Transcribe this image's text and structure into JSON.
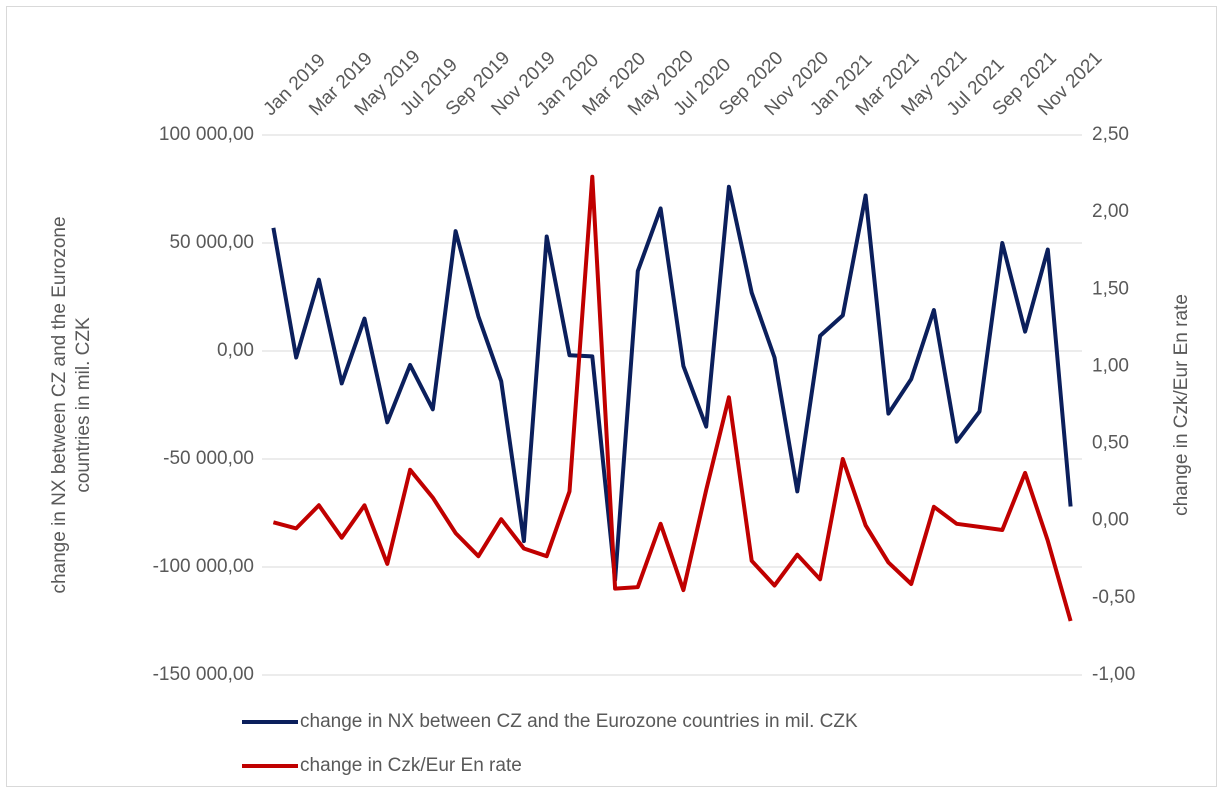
{
  "chart_data": {
    "type": "line",
    "y_label": "change in NX between CZ and the Eurozone countries in mil. CZK",
    "y2_label": "change in Czk/Eur En rate",
    "categories": [
      "Jan 2019",
      null,
      "Mar 2019",
      null,
      "May 2019",
      null,
      "Jul 2019",
      null,
      "Sep 2019",
      null,
      "Nov 2019",
      null,
      "Jan 2020",
      null,
      "Mar 2020",
      null,
      "May 2020",
      null,
      "Jul 2020",
      null,
      "Sep 2020",
      null,
      "Nov 2020",
      null,
      "Jan 2021",
      null,
      "Mar 2021",
      null,
      "May 2021",
      null,
      "Jul 2021",
      null,
      "Sep 2021",
      null,
      "Nov 2021",
      null
    ],
    "series": [
      {
        "name": "change in NX between CZ and the Eurozone countries in mil. CZK",
        "color": "#0b1f5c",
        "axis": "y",
        "values": [
          57000,
          -3000,
          33000,
          -15000,
          15000,
          -33000,
          -6500,
          -27000,
          55500,
          16000,
          -14000,
          -88000,
          53000,
          -2000,
          -2500,
          -106000,
          37000,
          66000,
          -7000,
          -35000,
          76000,
          27000,
          -3000,
          -65000,
          7000,
          16500,
          72000,
          -29000,
          -13000,
          19000,
          -42000,
          -28000,
          50000,
          9000,
          47000,
          -72000
        ]
      },
      {
        "name": "change in Czk/Eur En rate",
        "color": "#c00000",
        "axis": "y2",
        "values": [
          -0.01,
          -0.05,
          0.1,
          -0.11,
          0.1,
          -0.28,
          0.33,
          0.15,
          -0.08,
          -0.23,
          0.01,
          -0.18,
          -0.23,
          0.19,
          2.23,
          -0.44,
          -0.43,
          -0.02,
          -0.45,
          0.2,
          0.8,
          -0.26,
          -0.42,
          -0.22,
          -0.38,
          0.4,
          -0.03,
          -0.27,
          -0.41,
          0.09,
          -0.02,
          -0.04,
          -0.06,
          0.31,
          -0.13,
          -0.65
        ]
      }
    ],
    "ylim": [
      -150000,
      100000
    ],
    "yticks": [
      {
        "value": -150000,
        "label": "-150 000,00"
      },
      {
        "value": -100000,
        "label": "-100 000,00"
      },
      {
        "value": -50000,
        "label": "-50 000,00"
      },
      {
        "value": 0,
        "label": "0,00"
      },
      {
        "value": 50000,
        "label": "50 000,00"
      },
      {
        "value": 100000,
        "label": "100 000,00"
      }
    ],
    "y2lim": [
      -1,
      2.5
    ],
    "y2ticks": [
      {
        "value": -1,
        "label": "-1,00"
      },
      {
        "value": -0.5,
        "label": "-0,50"
      },
      {
        "value": 0,
        "label": "0,00"
      },
      {
        "value": 0.5,
        "label": "0,50"
      },
      {
        "value": 1,
        "label": "1,00"
      },
      {
        "value": 1.5,
        "label": "1,50"
      },
      {
        "value": 2,
        "label": "2,00"
      },
      {
        "value": 2.5,
        "label": "2,50"
      }
    ],
    "grid": true,
    "legend": "bottom"
  }
}
